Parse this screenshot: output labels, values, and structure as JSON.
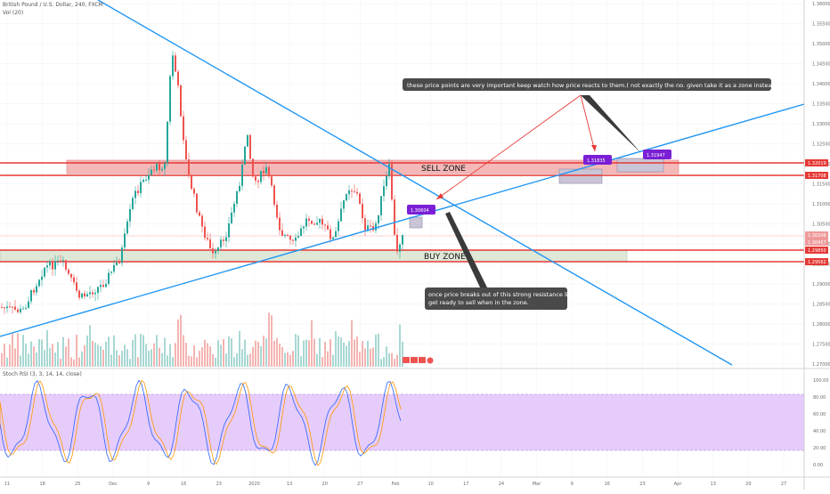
{
  "header": {
    "symbol_line": "British Pound / U.S. Dollar, 240, FXCM",
    "volume_line": "Vol (20)",
    "rsi_line": "Stoch RSI (3, 3, 14, 14, close)"
  },
  "price_axis": {
    "ticks": [
      "1.36000",
      "1.35500",
      "1.35000",
      "1.34500",
      "1.34000",
      "1.33500",
      "1.33000",
      "1.32500",
      "1.32000",
      "1.31500",
      "1.31000",
      "1.30500",
      "1.30000",
      "1.29500",
      "1.29000",
      "1.28500",
      "1.28000",
      "1.27500",
      "1.27000"
    ],
    "tags": [
      {
        "label": "1.32019",
        "color": "#e53935"
      },
      {
        "label": "1.31708",
        "color": "#e53935"
      },
      {
        "label": "1.30206",
        "color": "#ef9a9a"
      },
      {
        "label": "1.30457",
        "color": "#ef9a9a"
      },
      {
        "label": "1.29850",
        "color": "#e53935"
      },
      {
        "label": "1.29562",
        "color": "#e53935"
      }
    ]
  },
  "rsi_axis": {
    "ticks": [
      "100.00",
      "80.00",
      "60.00",
      "40.00",
      "20.00",
      "0.00"
    ]
  },
  "time_axis": {
    "ticks": [
      "11",
      "18",
      "25",
      "Dec",
      "9",
      "16",
      "23",
      "2020",
      "13",
      "20",
      "27",
      "Feb",
      "10",
      "17",
      "24",
      "Mar",
      "9",
      "16",
      "23",
      "Apr",
      "13",
      "20",
      "27"
    ]
  },
  "zones": {
    "sell_label": "SELL ZONE",
    "buy_label": "BUY ZONE"
  },
  "price_labels": [
    {
      "text": "1.30604"
    },
    {
      "text": "1.31835"
    },
    {
      "text": "1.31947"
    }
  ],
  "notes": {
    "top": "these price points are very important keep watch how price reacts to them.( not exactly the no. given take it as a zone instead.)",
    "bottom_line1": "once price breaks out of this strong resistance line",
    "bottom_line2": "get ready to sell when in the zone."
  },
  "colors": {
    "up": "#26a69a",
    "down": "#ef5350",
    "trend": "#2196f3",
    "zone_line": "#e53935",
    "sell_fill": "#f4b8b8",
    "buy_fill": "#dfe8d7",
    "label_bg": "#7b1fd6",
    "note_bg": "#4a4a4a",
    "rsi_band": "#e6ccfb"
  }
}
